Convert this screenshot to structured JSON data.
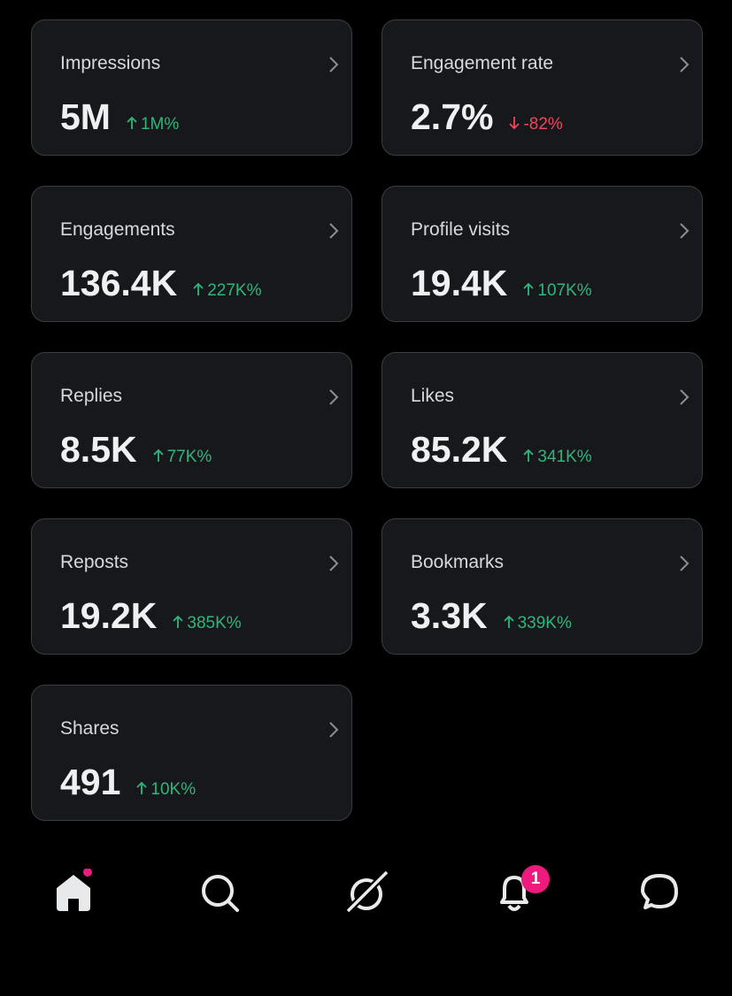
{
  "metrics": [
    {
      "label": "Impressions",
      "value": "5M",
      "change": "1M%",
      "direction": "up"
    },
    {
      "label": "Engagement rate",
      "value": "2.7%",
      "change": "-82%",
      "direction": "down"
    },
    {
      "label": "Engagements",
      "value": "136.4K",
      "change": "227K%",
      "direction": "up"
    },
    {
      "label": "Profile visits",
      "value": "19.4K",
      "change": "107K%",
      "direction": "up"
    },
    {
      "label": "Replies",
      "value": "8.5K",
      "change": "77K%",
      "direction": "up"
    },
    {
      "label": "Likes",
      "value": "85.2K",
      "change": "341K%",
      "direction": "up"
    },
    {
      "label": "Reposts",
      "value": "19.2K",
      "change": "385K%",
      "direction": "up"
    },
    {
      "label": "Bookmarks",
      "value": "3.3K",
      "change": "339K%",
      "direction": "up"
    },
    {
      "label": "Shares",
      "value": "491",
      "change": "10K%",
      "direction": "up"
    }
  ],
  "nav": {
    "notifications_badge": "1"
  }
}
